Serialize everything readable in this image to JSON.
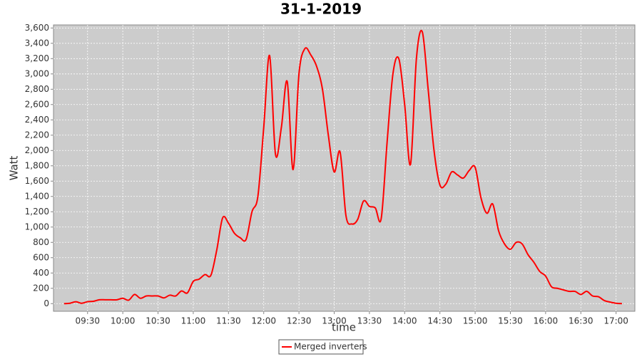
{
  "chart_data": {
    "type": "line",
    "title": "31-1-2019",
    "x_label": "time",
    "y_label": "Watt",
    "x": [
      "09:10",
      "09:15",
      "09:20",
      "09:25",
      "09:30",
      "09:35",
      "09:40",
      "09:45",
      "09:50",
      "09:55",
      "10:00",
      "10:05",
      "10:10",
      "10:15",
      "10:20",
      "10:25",
      "10:30",
      "10:35",
      "10:40",
      "10:45",
      "10:50",
      "10:55",
      "11:00",
      "11:05",
      "11:10",
      "11:15",
      "11:20",
      "11:25",
      "11:30",
      "11:35",
      "11:40",
      "11:45",
      "11:50",
      "11:55",
      "12:00",
      "12:05",
      "12:10",
      "12:15",
      "12:20",
      "12:25",
      "12:30",
      "12:35",
      "12:40",
      "12:45",
      "12:50",
      "12:55",
      "13:00",
      "13:05",
      "13:10",
      "13:15",
      "13:20",
      "13:25",
      "13:30",
      "13:35",
      "13:40",
      "13:45",
      "13:50",
      "13:55",
      "14:00",
      "14:05",
      "14:10",
      "14:15",
      "14:20",
      "14:25",
      "14:30",
      "14:35",
      "14:40",
      "14:45",
      "14:50",
      "14:55",
      "15:00",
      "15:05",
      "15:10",
      "15:15",
      "15:20",
      "15:25",
      "15:30",
      "15:35",
      "15:40",
      "15:45",
      "15:50",
      "15:55",
      "16:00",
      "16:05",
      "16:10",
      "16:15",
      "16:20",
      "16:25",
      "16:30",
      "16:35",
      "16:40",
      "16:45",
      "16:50",
      "16:55",
      "17:00",
      "17:05"
    ],
    "series": [
      {
        "name": "Merged inverters",
        "color": "#ff0000",
        "values": [
          0,
          5,
          25,
          5,
          25,
          30,
          50,
          50,
          50,
          50,
          70,
          45,
          120,
          70,
          100,
          100,
          100,
          75,
          110,
          100,
          165,
          140,
          290,
          320,
          380,
          370,
          700,
          1120,
          1050,
          920,
          860,
          840,
          1200,
          1400,
          2300,
          3240,
          1950,
          2300,
          2900,
          1750,
          3000,
          3330,
          3250,
          3100,
          2800,
          2200,
          1720,
          1980,
          1150,
          1040,
          1100,
          1340,
          1270,
          1250,
          1110,
          2100,
          3000,
          3200,
          2600,
          1820,
          3200,
          3550,
          2800,
          2000,
          1550,
          1560,
          1720,
          1680,
          1640,
          1740,
          1780,
          1380,
          1180,
          1300,
          950,
          780,
          710,
          800,
          780,
          640,
          540,
          420,
          360,
          220,
          200,
          180,
          160,
          160,
          120,
          160,
          100,
          90,
          40,
          20,
          5,
          0
        ]
      }
    ],
    "xlim": [
      "09:01",
      "17:16"
    ],
    "xticks": [
      "09:30",
      "10:00",
      "10:30",
      "11:00",
      "11:30",
      "12:00",
      "12:30",
      "13:00",
      "13:30",
      "14:00",
      "14:30",
      "15:00",
      "15:30",
      "16:00",
      "16:30",
      "17:00"
    ],
    "ylim": [
      -100,
      3640
    ],
    "yticks": [
      0,
      200,
      400,
      600,
      800,
      {
        "value": 1000,
        "label": "1,000"
      },
      {
        "value": 1200,
        "label": "1,200"
      },
      {
        "value": 1400,
        "label": "1,400"
      },
      {
        "value": 1600,
        "label": "1,600"
      },
      {
        "value": 1800,
        "label": "1,800"
      },
      {
        "value": 2000,
        "label": "2,000"
      },
      {
        "value": 2200,
        "label": "2,200"
      },
      {
        "value": 2400,
        "label": "2,400"
      },
      {
        "value": 2600,
        "label": "2,600"
      },
      {
        "value": 2800,
        "label": "2,800"
      },
      {
        "value": 3000,
        "label": "3,000"
      },
      {
        "value": 3200,
        "label": "3,200"
      },
      {
        "value": 3400,
        "label": "3,400"
      },
      {
        "value": 3600,
        "label": "3,600"
      }
    ],
    "grid": true,
    "legend": "bottom"
  }
}
